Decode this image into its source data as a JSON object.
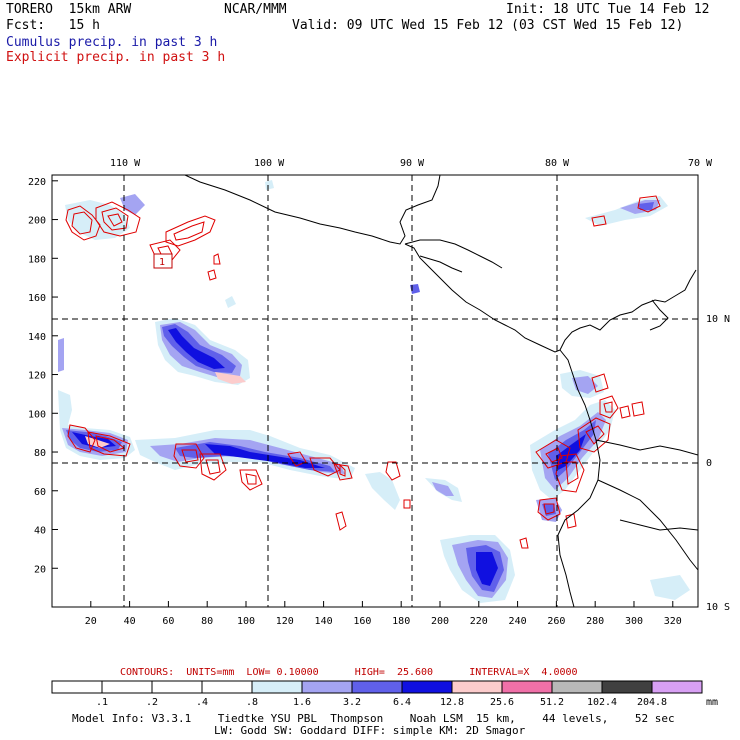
{
  "header": {
    "model": "TORERO  15km ARW",
    "org": "NCAR/MMM",
    "init": "Init: 18 UTC Tue 14 Feb 12",
    "fcst": "Fcst:   15 h",
    "valid": "Valid: 09 UTC Wed 15 Feb 12 (03 CST Wed 15 Feb 12)"
  },
  "legend": {
    "cumulus": "Cumulus precip. in past 3 h",
    "explicit": "Explicit precip. in past 3 h"
  },
  "colors": {
    "cumulus": "#1a1aa8",
    "explicit": "#d01010"
  },
  "map": {
    "lon_labels": [
      {
        "text": "110 W",
        "lon": -110
      },
      {
        "text": "100 W",
        "lon": -100
      },
      {
        "text": "90 W",
        "lon": -90
      },
      {
        "text": "80 W",
        "lon": -80
      },
      {
        "text": "70 W",
        "lon": -70
      }
    ],
    "lat_labels": [
      {
        "text": "10 N",
        "lat": 10
      },
      {
        "text": "0",
        "lat": 0
      },
      {
        "text": "10 S",
        "lat": -10
      }
    ],
    "x_ticks": [
      "20",
      "40",
      "60",
      "80",
      "100",
      "120",
      "140",
      "160",
      "180",
      "200",
      "220",
      "240",
      "260",
      "280",
      "300",
      "320"
    ],
    "y_ticks": [
      "20",
      "40",
      "60",
      "80",
      "100",
      "120",
      "140",
      "160",
      "180",
      "200",
      "220"
    ],
    "box_label": "1"
  },
  "contours": {
    "text": "CONTOURS:  UNITS=mm  LOW= 0.10000      HIGH=  25.600      INTERVAL=X  4.0000"
  },
  "colorbar": {
    "labels": [
      ".1",
      ".2",
      ".4",
      ".8",
      "1.6",
      "3.2",
      "6.4",
      "12.8",
      "25.6",
      "51.2",
      "102.4",
      "204.8"
    ],
    "units": "mm",
    "fills": [
      "#ffffff",
      "#ffffff",
      "#ffffff",
      "#ffffff",
      "#d6eef8",
      "#a4a4f2",
      "#6060ea",
      "#1010e0",
      "#fccccc",
      "#f070a8",
      "#b8b8b8",
      "#404040",
      "#d8a0f4"
    ]
  },
  "footer": {
    "line1": "Model Info: V3.3.1    Tiedtke YSU PBL  Thompson    Noah LSM  15 km,    44 levels,    52 sec",
    "line2": "LW: Godd SW: Goddard DIFF: simple KM: 2D Smagor"
  }
}
